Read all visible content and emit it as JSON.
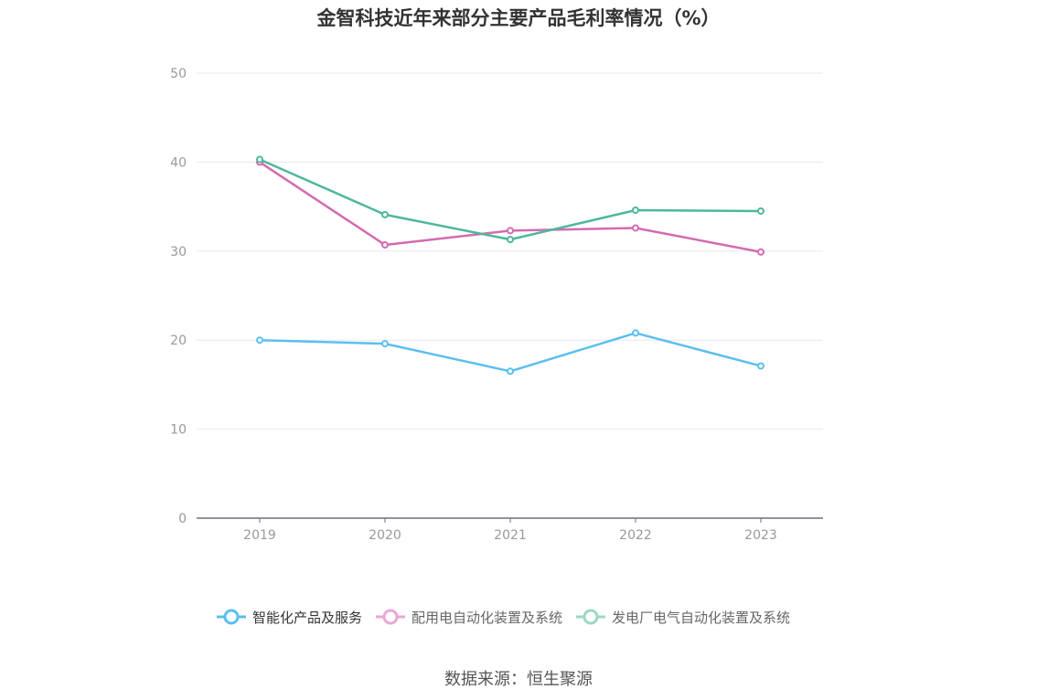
{
  "title": "金智科技近年来部分主要产品毛利率情况（%）",
  "source": "数据来源：恒生聚源",
  "chart_data": {
    "type": "line",
    "title": "金智科技近年来部分主要产品毛利率情况（%）",
    "categories": [
      "2019",
      "2020",
      "2021",
      "2022",
      "2023"
    ],
    "ylim": [
      0,
      50
    ],
    "yticks": [
      0,
      10,
      20,
      30,
      40,
      50
    ],
    "grid": true,
    "legend_position": "bottom",
    "series": [
      {
        "name": "智能化产品及服务",
        "color": "#5bbfef",
        "values": [
          20.0,
          19.6,
          16.5,
          20.8,
          17.1
        ]
      },
      {
        "name": "配用电自动化装置及系统",
        "color": "#d36bb0",
        "values": [
          40.0,
          30.7,
          32.3,
          32.6,
          29.9
        ]
      },
      {
        "name": "发电厂电气自动化装置及系统",
        "color": "#4db89a",
        "values": [
          40.3,
          34.1,
          31.3,
          34.6,
          34.5
        ]
      }
    ]
  }
}
